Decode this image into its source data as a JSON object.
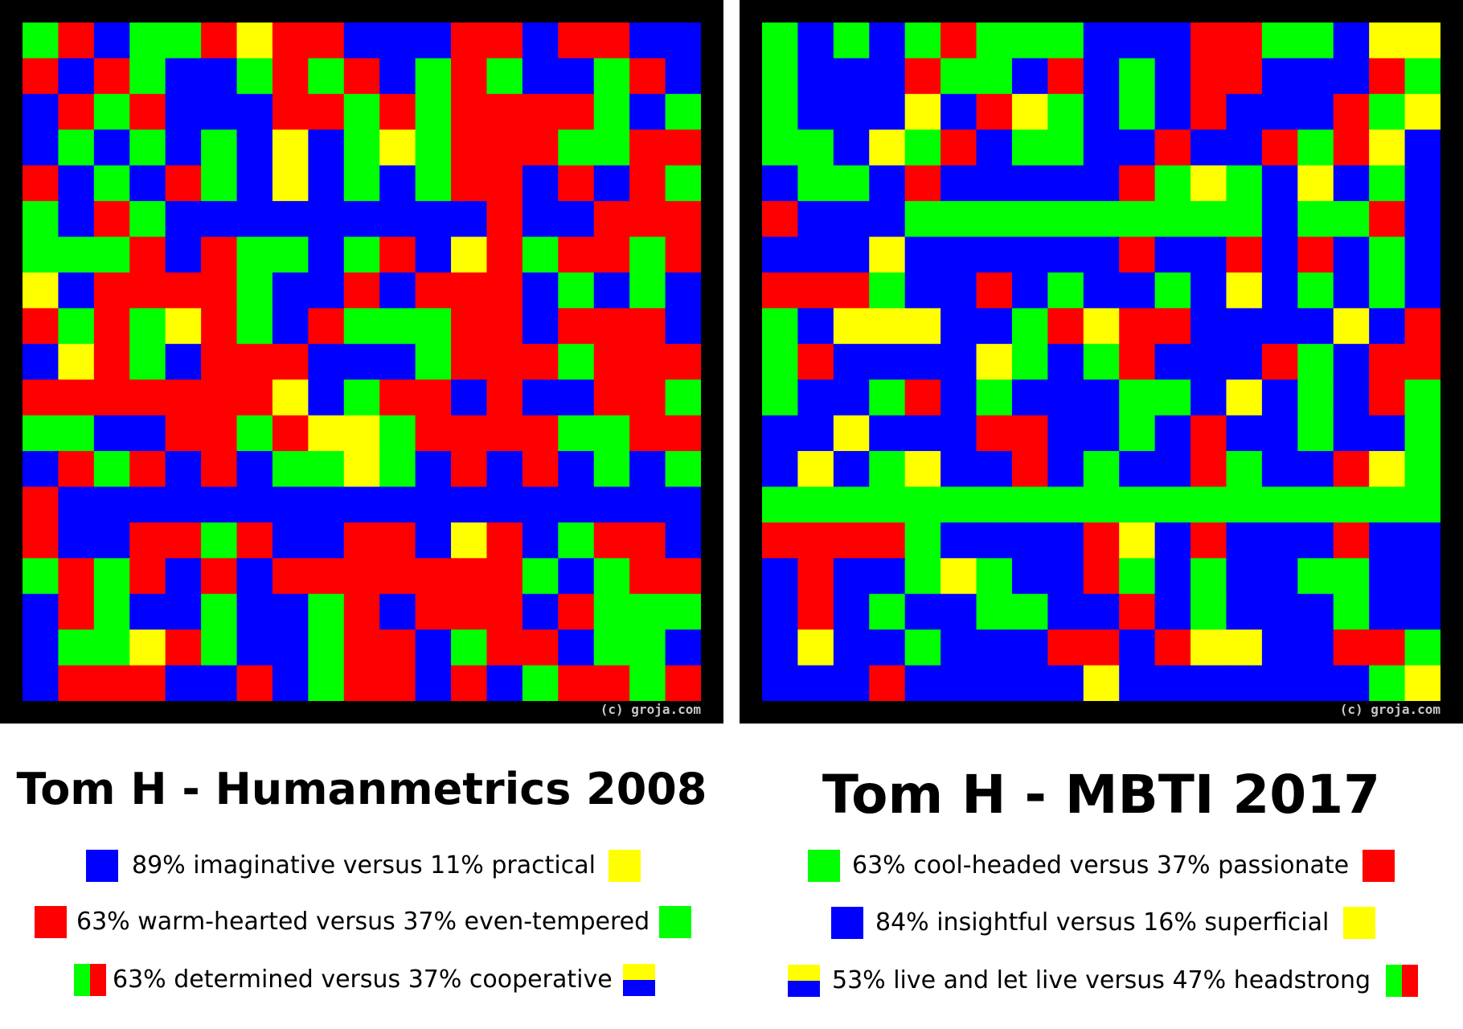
{
  "palette": {
    "blue": "#0000ff",
    "red": "#ff0000",
    "green": "#00ff00",
    "yellow": "#ffff00",
    "frame": "#000000"
  },
  "chart_data": [
    {
      "type": "heatmap",
      "title": "Tom H - Humanmetrics 2008",
      "credit": "(c) groja.com",
      "grid_size": 19,
      "legend": [
        {
          "text": "89% imaginative versus 11% practical",
          "left_swatch": [
            "blue"
          ],
          "right_swatch": [
            "yellow"
          ]
        },
        {
          "text": "63% warm-hearted versus 37% even-tempered",
          "left_swatch": [
            "red"
          ],
          "right_swatch": [
            "green"
          ]
        },
        {
          "text": "63% determined versus 37% cooperative",
          "left_swatch": [
            "green",
            "red"
          ],
          "right_swatch": [
            "yellow",
            "blue"
          ]
        }
      ],
      "cells": [
        "GRBGGRYRRBBBRRBRRBB",
        "RBRGBBGRGRBGRGBBGRB",
        "BRGRBBBRRGRGRRRRGBG",
        "BGBGBGBYBGYGRRRGGRR",
        "RBGBRGBYBGBGRRBRBRG",
        "GBRGBBBBBBBBBRBBRRR",
        "GGGRBRGGBGRBYRGRRGR",
        "YBRRRRGBBRBRRRBGBGB",
        "RGRGYRGBRGGGRRBRRRB",
        "BYRGBRRRBBBGRRRGRRR",
        "RRRRRRRYBGRRBRBBRRG",
        "GGBBRRGRYYGRRRRGGRR",
        "BRGRBRBGGYGBRBRBGBG",
        "RBBBBBBBBBBBBBBBBBB",
        "RBBRRGRBBRRBYRBGRRB",
        "GRGRBRBRRRRRRRGBGRR",
        "BRGBBGBBGRBRRRBRGGG",
        "BGGYRGBBGRRBGRRBGGB",
        "BRRRBBRBGRRBRBGRRGR"
      ]
    },
    {
      "type": "heatmap",
      "title": "Tom H - MBTI 2017",
      "credit": "(c) groja.com",
      "grid_size": 19,
      "legend": [
        {
          "text": "63% cool-headed versus 37% passionate",
          "left_swatch": [
            "green"
          ],
          "right_swatch": [
            "red"
          ]
        },
        {
          "text": "84% insightful versus 16% superficial",
          "left_swatch": [
            "blue"
          ],
          "right_swatch": [
            "yellow"
          ]
        },
        {
          "text": "53% live and let live versus 47% headstrong",
          "left_swatch": [
            "yellow",
            "blue"
          ],
          "right_swatch": [
            "green",
            "red"
          ]
        }
      ],
      "cells": [
        "GBGBGRGGGBBBRRGGBYY",
        "GBBBRGGBRBGBRRBBBRG",
        "GBBBYBRYGBGBRBBBRGY",
        "GGBYGRBGGBBRBBRGRYB",
        "BGGBRBBBBBRGYGBYBGB",
        "RBBBGGGGGGGGGGBGGRB",
        "BBBYBBBBBBRBBRBRBGB",
        "RRRGBBRBGBBGBYBGBGB",
        "GBYYYBBGRYRRBBBBYBR",
        "GRBBBBYGBGRBBBRGBRR",
        "GBBGRBGBBBGGBYBGBRG",
        "BBYBBBRRBBGBRBBGBBG",
        "BYBGYBBRBGBBRGBBRYG",
        "GGGGGGGGGGGGGGGGGGG",
        "RRRRGBBBBRYBRBBBRBB",
        "BRBBGYGBBRGBGBBGGBB",
        "BRBGBBGGBBRBGBBBGBB",
        "BYBBGBBBRRBRYYBBRRG",
        "BBBRBBBBBYBBBBBBBGY"
      ]
    }
  ]
}
